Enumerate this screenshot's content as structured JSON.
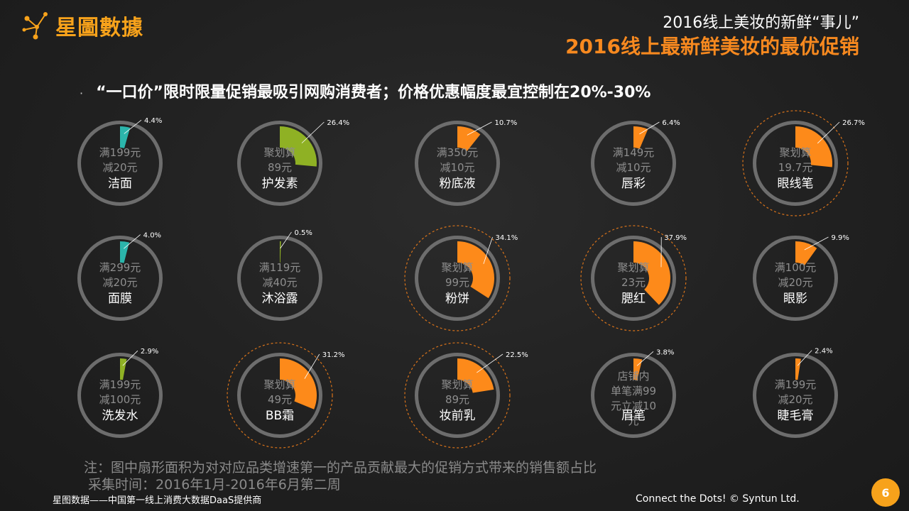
{
  "brand": {
    "name": "星圖數據",
    "icon": "dots-network-icon",
    "color": "#f7a21b"
  },
  "header": {
    "subtitle": "2016线上美妆的新鲜“事儿”",
    "title": "2016线上最新鲜美妆的最优促销"
  },
  "headline": {
    "bullet": "·",
    "text": "“一口价”限时限量促销最吸引网购消费者；价格优惠幅度最宜控制在20%-30%"
  },
  "colors": {
    "orange": "#fd8a1a",
    "teal": "#2bb5ab",
    "green": "#8fb124",
    "ring": "#6d6d6d"
  },
  "chart_data": {
    "type": "pie",
    "items": [
      {
        "product": "洁面",
        "promo": [
          "满199元",
          "减20元"
        ],
        "value": 4.4,
        "label": "4.4%",
        "color": "teal",
        "highlight": false
      },
      {
        "product": "护发素",
        "promo": [
          "聚划算",
          "89元"
        ],
        "value": 26.4,
        "label": "26.4%",
        "color": "green",
        "highlight": false
      },
      {
        "product": "粉底液",
        "promo": [
          "满350元",
          "减10元"
        ],
        "value": 10.7,
        "label": "10.7%",
        "color": "orange",
        "highlight": false
      },
      {
        "product": "唇彩",
        "promo": [
          "满149元",
          "减10元"
        ],
        "value": 6.4,
        "label": "6.4%",
        "color": "orange",
        "highlight": false
      },
      {
        "product": "眼线笔",
        "promo": [
          "聚划算",
          "19.7元"
        ],
        "value": 26.7,
        "label": "26.7%",
        "color": "orange",
        "highlight": true
      },
      {
        "product": "面膜",
        "promo": [
          "满299元",
          "减20元"
        ],
        "value": 4.0,
        "label": "4.0%",
        "color": "teal",
        "highlight": false
      },
      {
        "product": "沐浴露",
        "promo": [
          "满119元",
          "减40元"
        ],
        "value": 0.5,
        "label": "0.5%",
        "color": "green",
        "highlight": false
      },
      {
        "product": "粉饼",
        "promo": [
          "聚划算",
          "99元"
        ],
        "value": 34.1,
        "label": "34.1%",
        "color": "orange",
        "highlight": true
      },
      {
        "product": "腮红",
        "promo": [
          "聚划算",
          "23元"
        ],
        "value": 37.9,
        "label": "37.9%",
        "color": "orange",
        "highlight": true
      },
      {
        "product": "眼影",
        "promo": [
          "满100元",
          "减20元"
        ],
        "value": 9.9,
        "label": "9.9%",
        "color": "orange",
        "highlight": false
      },
      {
        "product": "洗发水",
        "promo": [
          "满199元",
          "减100元"
        ],
        "value": 2.9,
        "label": "2.9%",
        "color": "green",
        "highlight": false
      },
      {
        "product": "BB霜",
        "promo": [
          "聚划算",
          "49元"
        ],
        "value": 31.2,
        "label": "31.2%",
        "color": "orange",
        "highlight": true
      },
      {
        "product": "妆前乳",
        "promo": [
          "聚划算",
          "89元"
        ],
        "value": 22.5,
        "label": "22.5%",
        "color": "orange",
        "highlight": true
      },
      {
        "product": "眉笔",
        "promo": [
          "店铺内",
          "单笔满99",
          "元立减10",
          "元"
        ],
        "value": 3.8,
        "label": "3.8%",
        "color": "orange",
        "highlight": false
      },
      {
        "product": "睫毛膏",
        "promo": [
          "满199元",
          "减20元"
        ],
        "value": 2.4,
        "label": "2.4%",
        "color": "orange",
        "highlight": false
      }
    ]
  },
  "note": {
    "line1": "注：图中扇形面积为对对应品类增速第一的产品贡献最大的促销方式带来的销售额占比",
    "line2": " 采集时间：2016年1月-2016年6月第二周"
  },
  "footer": {
    "left": "星图数据——中国第一线上消费大数据DaaS提供商",
    "right": "Connect the Dots!  © Syntun Ltd.",
    "page": "6"
  }
}
